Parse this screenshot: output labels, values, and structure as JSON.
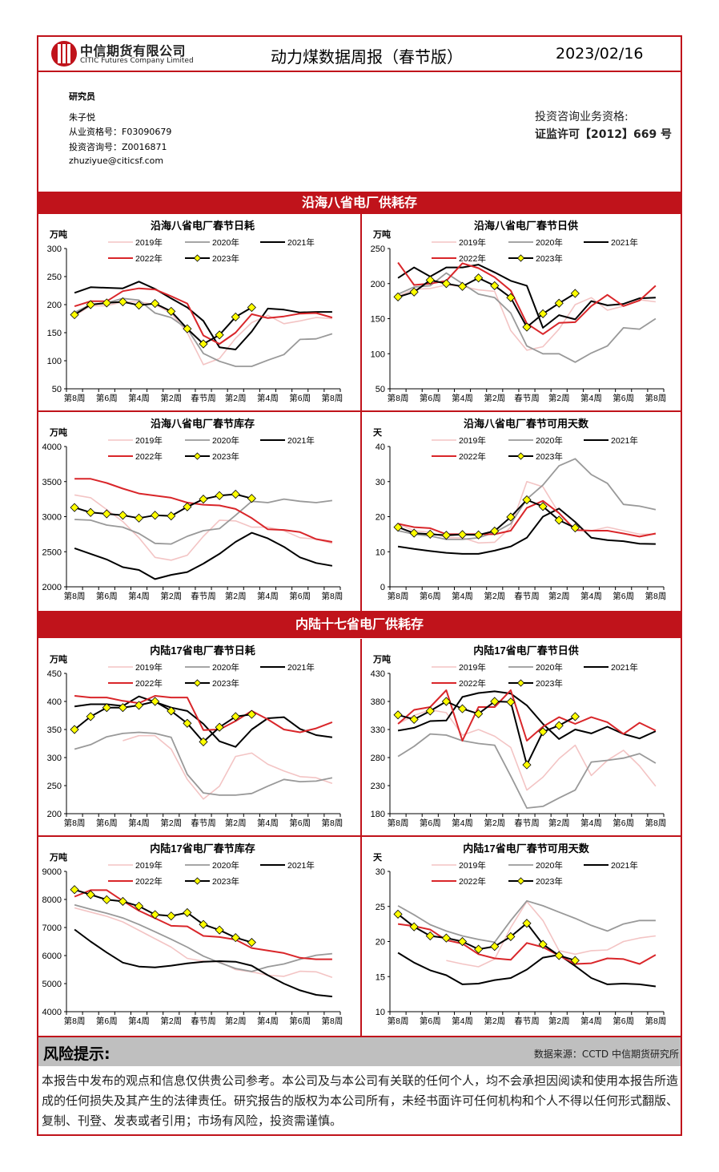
{
  "header": {
    "company_cn": "中信期货有限公司",
    "company_en": "CITIC Futures Company Limited",
    "title": "动力煤数据周报（春节版）",
    "date": "2023/02/16"
  },
  "researcher": {
    "heading": "研究员",
    "name": "朱子悦",
    "cert": "从业资格号：F03090679",
    "consult": "投资咨询号：Z0016871",
    "email": "zhuziyue@citicsf.com"
  },
  "qualification": {
    "line1": "投资咨询业务资格:",
    "line2": "证监许可【2012】669 号"
  },
  "sections": [
    "沿海八省电厂供耗存",
    "内陆十七省电厂供耗存"
  ],
  "risk": {
    "title": "风险提示:",
    "source": "数据来源：CCTD  中信期货研究所",
    "text": "本报告中发布的观点和信息仅供贵公司参考。本公司及与本公司有关联的任何个人，均不会承担因阅读和使用本报告所造成的任何损失及其产生的法律责任。研究报告的版权为本公司所有，未经书面许可任何机构和个人不得以任何形式翻版、复制、刊登、发表或者引用；市场有风险，投资需谨慎。"
  },
  "colors": {
    "brand": "#c0131b",
    "y2019": "#f3c4c4",
    "y2020": "#999999",
    "y2021": "#000000",
    "y2022": "#d9262a",
    "y2023": "#000000",
    "marker": "#ffff00"
  },
  "chart_data": [
    {
      "type": "line",
      "title": "沿海八省电厂春节日耗",
      "ylabel": "万吨",
      "ylim": [
        50,
        300
      ],
      "yticks": [
        50,
        100,
        150,
        200,
        250,
        300
      ],
      "xticks": [
        "第8周",
        "第6周",
        "第4周",
        "第2周",
        "春节周",
        "第2周",
        "第4周",
        "第6周",
        "第8周"
      ],
      "legend": "top",
      "series": [
        {
          "name": "2019年",
          "values": [
            180,
            198,
            198,
            205,
            205,
            200,
            185,
            150,
            93,
            104,
            140,
            168,
            181,
            166,
            171,
            177,
            175
          ]
        },
        {
          "name": "2020年",
          "values": [
            186,
            200,
            203,
            211,
            208,
            185,
            177,
            157,
            113,
            99,
            90,
            90,
            101,
            111,
            138,
            139,
            148
          ]
        },
        {
          "name": "2021年",
          "values": [
            221,
            231,
            230,
            229,
            241,
            228,
            211,
            195,
            171,
            124,
            120,
            152,
            193,
            191,
            186,
            187,
            187
          ]
        },
        {
          "name": "2022年",
          "values": [
            197,
            206,
            206,
            224,
            229,
            227,
            215,
            202,
            145,
            130,
            150,
            183,
            176,
            179,
            184,
            185,
            177
          ]
        },
        {
          "name": "2023年",
          "values": [
            182,
            200,
            203,
            205,
            199,
            202,
            188,
            157,
            130,
            146,
            178,
            195
          ]
        }
      ]
    },
    {
      "type": "line",
      "title": "沿海八省电厂春节日供",
      "ylabel": "万吨",
      "ylim": [
        50,
        250
      ],
      "yticks": [
        50,
        100,
        150,
        200,
        250
      ],
      "xticks": [
        "第8周",
        "第6周",
        "第4周",
        "第2周",
        "春节周",
        "第2周",
        "第4周",
        "第6周",
        "第8周"
      ],
      "legend": "top",
      "series": [
        {
          "name": "2019年",
          "values": [
            182,
            192,
            193,
            198,
            196,
            191,
            189,
            133,
            105,
            110,
            135,
            170,
            180,
            162,
            168,
            177,
            174
          ]
        },
        {
          "name": "2020年",
          "values": [
            185,
            195,
            197,
            215,
            200,
            185,
            180,
            158,
            111,
            100,
            100,
            88,
            101,
            111,
            137,
            135,
            150
          ]
        },
        {
          "name": "2021年",
          "values": [
            208,
            223,
            210,
            223,
            223,
            227,
            216,
            204,
            197,
            137,
            155,
            149,
            175,
            169,
            171,
            179,
            180
          ]
        },
        {
          "name": "2022年",
          "values": [
            230,
            198,
            200,
            204,
            229,
            222,
            209,
            190,
            143,
            128,
            144,
            145,
            168,
            184,
            168,
            176,
            197
          ]
        },
        {
          "name": "2023年",
          "values": [
            181,
            188,
            205,
            200,
            196,
            208,
            197,
            180,
            138,
            157,
            172,
            186
          ]
        }
      ]
    },
    {
      "type": "line",
      "title": "沿海八省电厂春节库存",
      "ylabel": "万吨",
      "ylim": [
        2000,
        4000
      ],
      "yticks": [
        2000,
        2500,
        3000,
        3500,
        4000
      ],
      "xticks": [
        "第8周",
        "第6周",
        "第4周",
        "第2周",
        "春节周",
        "第2周",
        "第4周",
        "第6周",
        "第8周"
      ],
      "legend": "top",
      "series": [
        {
          "name": "2019年",
          "values": [
            3310,
            3270,
            3100,
            2930,
            2700,
            2420,
            2380,
            2450,
            2720,
            2950,
            2940,
            2850,
            2850,
            2800,
            2700,
            2680,
            2620
          ]
        },
        {
          "name": "2020年",
          "values": [
            2960,
            2950,
            2880,
            2850,
            2760,
            2620,
            2610,
            2720,
            2800,
            2830,
            3020,
            3220,
            3200,
            3250,
            3220,
            3200,
            3230
          ]
        },
        {
          "name": "2021年",
          "values": [
            2550,
            2470,
            2390,
            2280,
            2240,
            2110,
            2170,
            2210,
            2330,
            2470,
            2640,
            2770,
            2690,
            2570,
            2420,
            2340,
            2300
          ]
        },
        {
          "name": "2022年",
          "values": [
            3540,
            3540,
            3480,
            3400,
            3330,
            3300,
            3270,
            3200,
            3170,
            3160,
            3110,
            2980,
            2820,
            2810,
            2780,
            2680,
            2640
          ]
        },
        {
          "name": "2023年",
          "values": [
            3130,
            3060,
            3040,
            3020,
            2980,
            3020,
            3010,
            3140,
            3250,
            3300,
            3320,
            3260
          ]
        }
      ]
    },
    {
      "type": "line",
      "title": "沿海八省电厂春节可用天数",
      "ylabel": "天",
      "ylim": [
        0,
        40
      ],
      "yticks": [
        0,
        10,
        20,
        30,
        40
      ],
      "xticks": [
        "第8周",
        "第6周",
        "第4周",
        "第2周",
        "春节周",
        "第2周",
        "第4周",
        "第6周",
        "第8周"
      ],
      "legend": "top",
      "series": [
        {
          "name": "2019年",
          "values": [
            18,
            16,
            15.5,
            14,
            14,
            12.5,
            12.7,
            17,
            30,
            28.5,
            21,
            16,
            16,
            17,
            16,
            15,
            15
          ]
        },
        {
          "name": "2020年",
          "values": [
            16,
            15,
            14.5,
            13.5,
            13.5,
            14,
            15.5,
            18,
            25,
            29,
            34.5,
            36.5,
            32,
            29.5,
            23.5,
            23,
            22
          ]
        },
        {
          "name": "2021年",
          "values": [
            11.5,
            10.8,
            10.2,
            9.7,
            9.4,
            9.4,
            10.3,
            11.5,
            14,
            20,
            22.3,
            18.5,
            14,
            13.3,
            13,
            12.3,
            12.2
          ]
        },
        {
          "name": "2022年",
          "values": [
            18,
            17,
            16.7,
            15,
            15,
            15,
            15,
            16,
            22.5,
            24.5,
            21,
            16.2,
            16,
            16,
            15.2,
            14.3,
            15.2
          ]
        },
        {
          "name": "2023年",
          "values": [
            17,
            15.3,
            15,
            14.7,
            14.9,
            14.8,
            15.9,
            19.9,
            24.8,
            22.9,
            19,
            16.8
          ]
        }
      ]
    },
    {
      "type": "line",
      "title": "内陆17省电厂春节日耗",
      "ylabel": "万吨",
      "ylim": [
        200,
        450
      ],
      "yticks": [
        200,
        250,
        300,
        350,
        400,
        450
      ],
      "xticks": [
        "第8周",
        "第6周",
        "第4周",
        "第2周",
        "春节周",
        "第2周",
        "第4周",
        "第6周",
        "第8周"
      ],
      "legend": "top",
      "series": [
        {
          "name": "2019年",
          "values": [
            null,
            null,
            null,
            330,
            339,
            339,
            315,
            261,
            226,
            249,
            302,
            308,
            288,
            276,
            266,
            264,
            254
          ]
        },
        {
          "name": "2020年",
          "values": [
            315,
            323,
            337,
            343,
            345,
            343,
            336,
            270,
            237,
            233,
            233,
            236,
            249,
            261,
            257,
            258,
            264
          ]
        },
        {
          "name": "2021年",
          "values": [
            391,
            395,
            395,
            392,
            409,
            399,
            389,
            383,
            360,
            329,
            319,
            350,
            370,
            372,
            351,
            340,
            336
          ]
        },
        {
          "name": "2022年",
          "values": [
            410,
            407,
            407,
            401,
            397,
            410,
            407,
            407,
            349,
            350,
            365,
            383,
            368,
            350,
            345,
            352,
            363
          ]
        },
        {
          "name": "2023年",
          "values": [
            350,
            373,
            389,
            389,
            393,
            400,
            383,
            361,
            328,
            354,
            373,
            377
          ]
        }
      ]
    },
    {
      "type": "line",
      "title": "内陆17省电厂春节日供",
      "ylabel": "万吨",
      "ylim": [
        180,
        430
      ],
      "yticks": [
        180,
        230,
        280,
        330,
        380,
        430
      ],
      "xticks": [
        "第8周",
        "第6周",
        "第4周",
        "第2周",
        "春节周",
        "第2周",
        "第4周",
        "第6周",
        "第8周"
      ],
      "legend": "top",
      "series": [
        {
          "name": "2019年",
          "values": [
            340,
            355,
            365,
            360,
            320,
            330,
            318,
            298,
            222,
            245,
            278,
            302,
            248,
            275,
            293,
            265,
            229
          ]
        },
        {
          "name": "2020年",
          "values": [
            282,
            300,
            322,
            320,
            310,
            305,
            302,
            247,
            190,
            193,
            208,
            222,
            272,
            275,
            279,
            287,
            270
          ]
        },
        {
          "name": "2021年",
          "values": [
            328,
            333,
            345,
            346,
            388,
            395,
            398,
            394,
            373,
            340,
            313,
            330,
            323,
            335,
            322,
            314,
            327
          ]
        },
        {
          "name": "2022年",
          "values": [
            340,
            365,
            370,
            400,
            310,
            370,
            370,
            400,
            310,
            335,
            352,
            340,
            352,
            343,
            322,
            342,
            328
          ]
        },
        {
          "name": "2023年",
          "values": [
            356,
            348,
            363,
            380,
            367,
            358,
            380,
            379,
            267,
            326,
            337,
            353
          ]
        }
      ]
    },
    {
      "type": "line",
      "title": "内陆17省电厂春节库存",
      "ylabel": "万吨",
      "ylim": [
        4000,
        9000
      ],
      "yticks": [
        4000,
        5000,
        6000,
        7000,
        8000,
        9000
      ],
      "xticks": [
        "第8周",
        "第6周",
        "第4周",
        "第2周",
        "春节周",
        "第2周",
        "第4周",
        "第6周",
        "第8周"
      ],
      "legend": "top",
      "series": [
        {
          "name": "2019年",
          "values": [
            7700,
            7550,
            7400,
            7200,
            6900,
            6600,
            6300,
            5900,
            5800,
            5780,
            5500,
            5420,
            5300,
            5260,
            5440,
            5420,
            5220
          ]
        },
        {
          "name": "2020年",
          "values": [
            7810,
            7650,
            7510,
            7340,
            7110,
            6850,
            6580,
            6300,
            5980,
            5750,
            5540,
            5430,
            5600,
            5700,
            5870,
            6010,
            6070
          ]
        },
        {
          "name": "2021年",
          "values": [
            6930,
            6500,
            6110,
            5750,
            5610,
            5580,
            5640,
            5720,
            5780,
            5800,
            5780,
            5640,
            5300,
            5000,
            4760,
            4600,
            4540
          ]
        },
        {
          "name": "2022年",
          "values": [
            8100,
            8330,
            8330,
            7950,
            7600,
            7330,
            7060,
            7040,
            6700,
            6660,
            6570,
            6270,
            6180,
            6090,
            5920,
            5870,
            5870
          ]
        },
        {
          "name": "2023年",
          "values": [
            8350,
            8170,
            7990,
            7930,
            7760,
            7460,
            7410,
            7530,
            7110,
            6910,
            6640,
            6470
          ]
        }
      ]
    },
    {
      "type": "line",
      "title": "内陆17省电厂春节可用天数",
      "ylabel": "天",
      "ylim": [
        10,
        30
      ],
      "yticks": [
        10,
        15,
        20,
        25,
        30
      ],
      "xticks": [
        "第8周",
        "第6周",
        "第4周",
        "第2周",
        "春节周",
        "第2周",
        "第4周",
        "第6周",
        "第8周"
      ],
      "legend": "top",
      "series": [
        {
          "name": "2019年",
          "values": [
            null,
            null,
            null,
            17.3,
            16.8,
            16.4,
            17.5,
            22,
            25.7,
            23,
            18.7,
            18.2,
            18.7,
            18.8,
            20,
            20.5,
            20.8
          ]
        },
        {
          "name": "2020年",
          "values": [
            25.1,
            23.8,
            22.4,
            21.5,
            20.8,
            20.3,
            19.9,
            23,
            25.8,
            25.1,
            24.2,
            23.3,
            22.3,
            21.5,
            22.5,
            23,
            23
          ]
        },
        {
          "name": "2021年",
          "values": [
            18.4,
            17,
            15.9,
            15.2,
            13.9,
            14,
            14.5,
            14.8,
            16,
            17.7,
            18.1,
            16.5,
            14.8,
            13.9,
            14,
            13.9,
            13.6
          ]
        },
        {
          "name": "2022年",
          "values": [
            22.5,
            22.2,
            21.7,
            20.2,
            19.7,
            18.2,
            17.6,
            17.4,
            19.8,
            19.2,
            18,
            16.8,
            16.9,
            17.6,
            17.5,
            16.8,
            18.1
          ]
        },
        {
          "name": "2023年",
          "values": [
            23.9,
            22.1,
            20.8,
            20.5,
            20,
            18.9,
            19.3,
            20.7,
            22.6,
            19.6,
            18,
            17.3
          ]
        }
      ]
    }
  ]
}
